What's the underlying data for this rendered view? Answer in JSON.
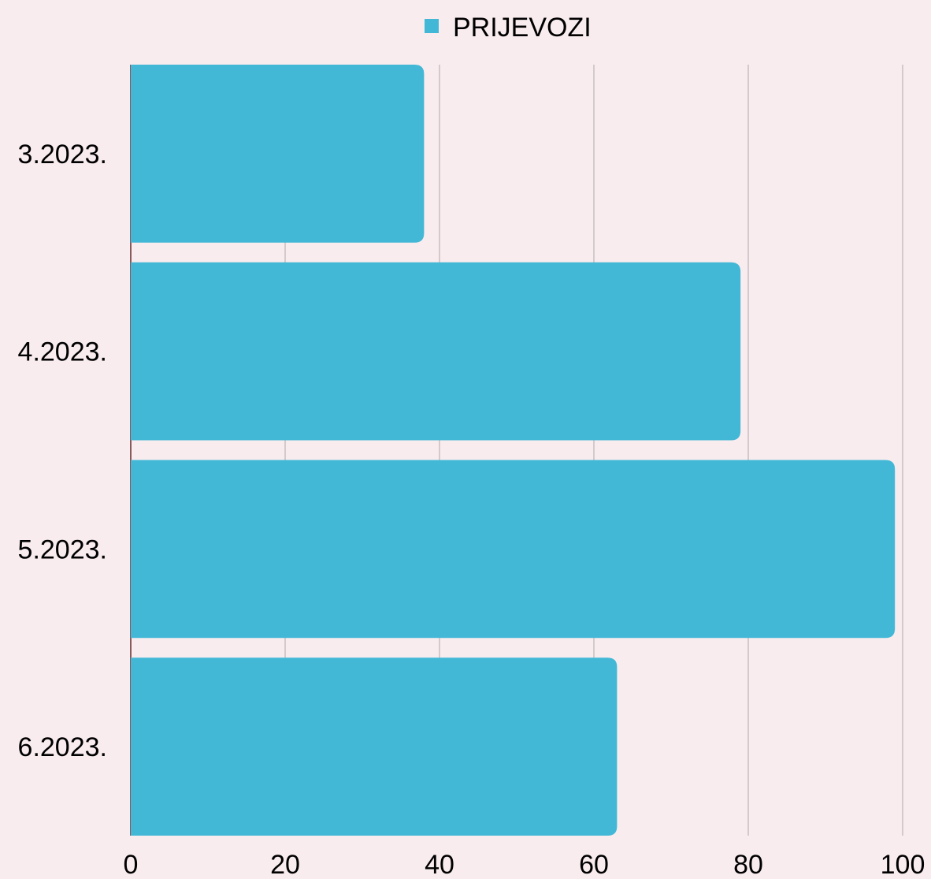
{
  "chart_data": {
    "type": "bar",
    "orientation": "horizontal",
    "categories": [
      "3.2023.",
      "4.2023.",
      "5.2023.",
      "6.2023."
    ],
    "series": [
      {
        "name": "PRIJEVOZI",
        "values": [
          38,
          79,
          99,
          63
        ],
        "color": "#43b8d6"
      }
    ],
    "xlim": [
      0,
      100
    ],
    "xticks": [
      "0",
      "20",
      "40",
      "60",
      "80",
      "100"
    ],
    "grid": true,
    "grid_color": "#c7bfc1",
    "legend_position": "top-center",
    "title": "",
    "xlabel": "",
    "ylabel": ""
  }
}
